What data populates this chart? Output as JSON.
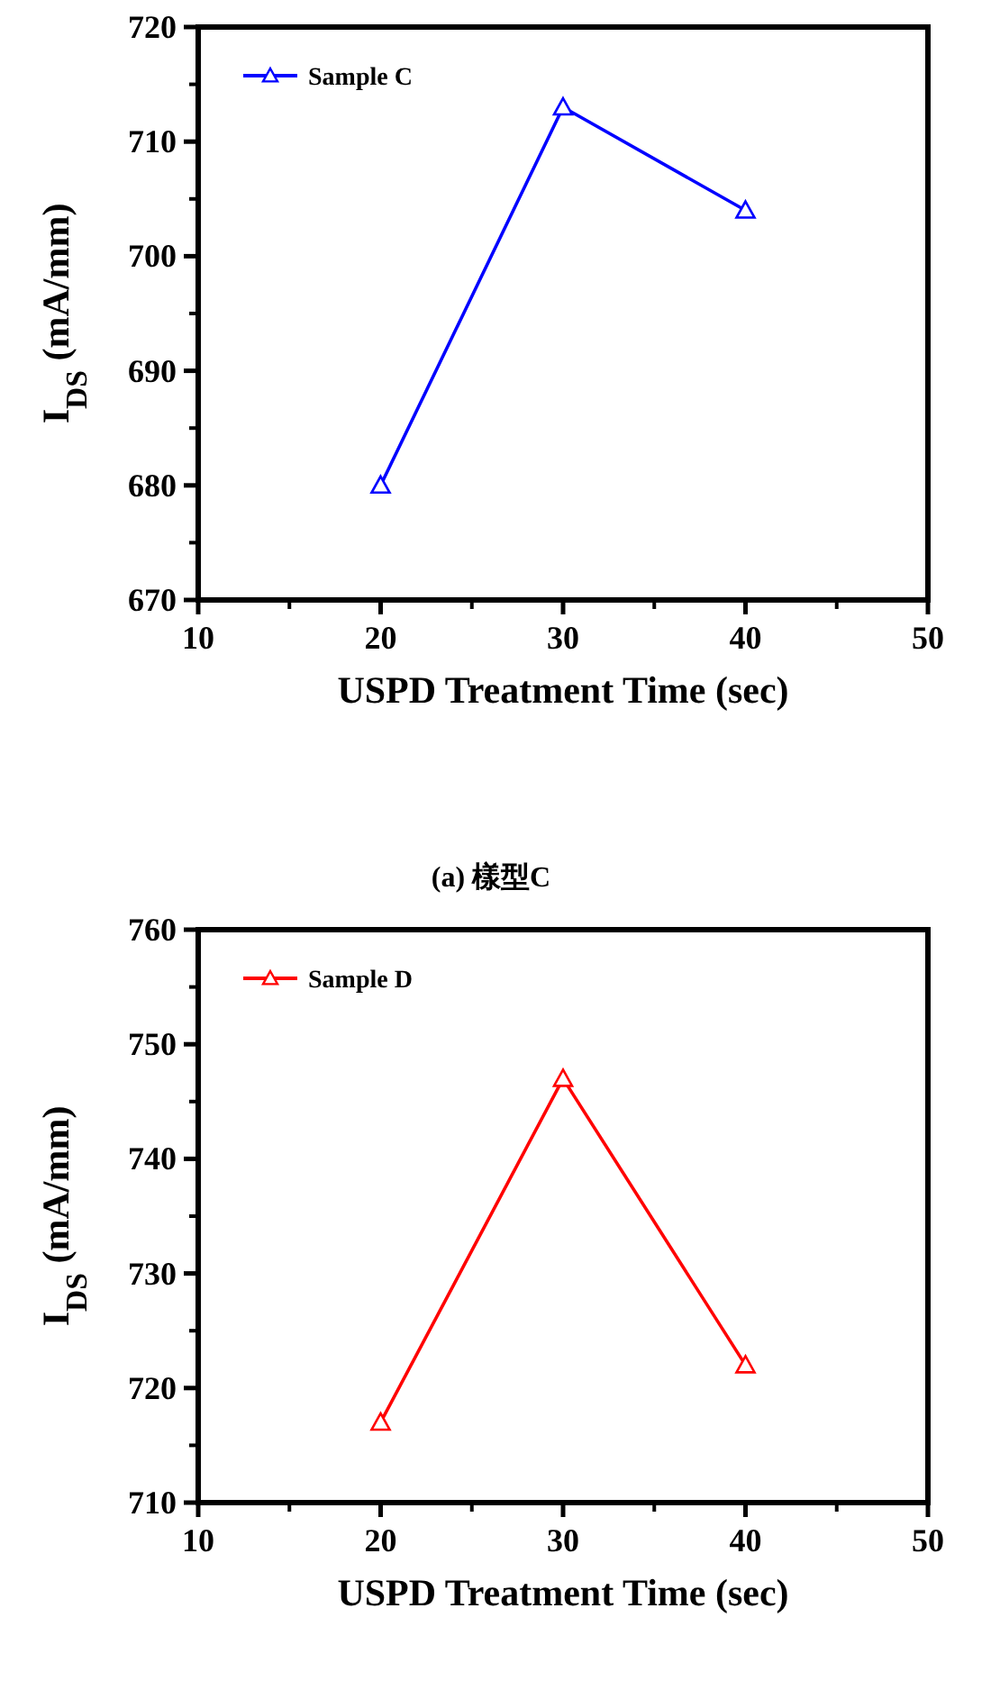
{
  "chart_data": [
    {
      "type": "line",
      "xlabel": "USPD Treatment Time (sec)",
      "ylabel": "I$_{DS}$ (mA/mm)",
      "x": [
        20,
        30,
        40
      ],
      "series": [
        {
          "name": "Sample C",
          "color": "#0000ff",
          "values": [
            680,
            713,
            704
          ]
        }
      ],
      "xlim": [
        10,
        50
      ],
      "xticks": [
        10,
        20,
        30,
        40,
        50
      ],
      "ylim": [
        670,
        720
      ],
      "yticks": [
        670,
        680,
        690,
        700,
        710,
        720
      ],
      "legend": "top left",
      "marker": "triangle",
      "line_style": "solid",
      "annotations": [
        "(a) 樣型C"
      ]
    },
    {
      "type": "line",
      "xlabel": "USPD Treatment Time (sec)",
      "ylabel": "I$_{DS}$ (mA/mm)",
      "x": [
        20,
        30,
        40
      ],
      "series": [
        {
          "name": "Sample D",
          "color": "#ff0000",
          "values": [
            717,
            747,
            722
          ]
        }
      ],
      "xlim": [
        10,
        50
      ],
      "xticks": [
        10,
        20,
        30,
        40,
        50
      ],
      "ylim": [
        710,
        760
      ],
      "yticks": [
        710,
        720,
        730,
        740,
        750,
        760
      ],
      "legend": "top left",
      "marker": "triangle",
      "line_style": "solid"
    }
  ]
}
